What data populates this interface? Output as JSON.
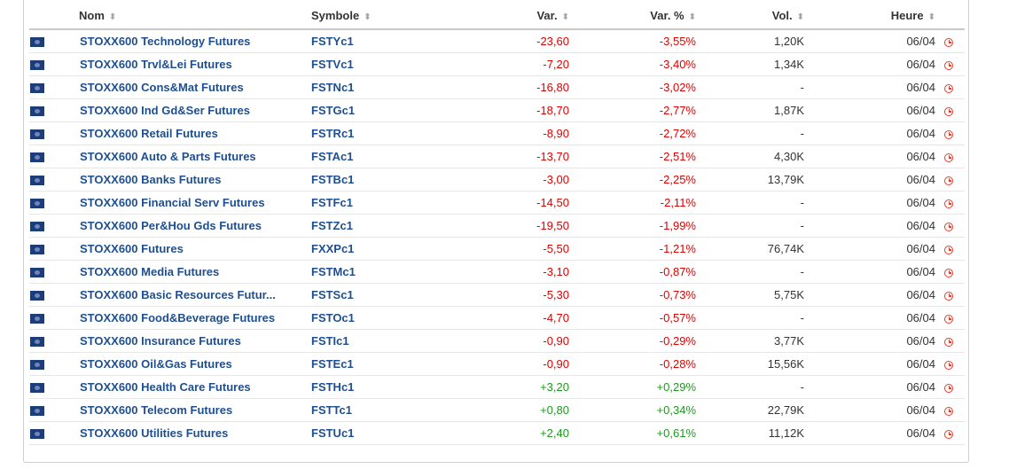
{
  "headers": {
    "name": "Nom",
    "symbol": "Symbole",
    "change": "Var.",
    "change_pct": "Var. %",
    "volume": "Vol.",
    "time": "Heure"
  },
  "sort_icons": {
    "name": "⬍",
    "symbol": "⬍",
    "change": "⬍",
    "change_pct": "⬍",
    "volume": "⬍",
    "time": "⬍"
  },
  "colors": {
    "negative": "#e00000",
    "positive": "#1e9a1e",
    "link": "#1f4f8f",
    "clock": "#e33b2e"
  },
  "flag_icon": "eu-flag-icon",
  "clock_icon": "clock-icon",
  "rows": [
    {
      "name": "STOXX600 Technology Futures",
      "symbol": "FSTYc1",
      "change": "-23,60",
      "change_pct": "-3,55%",
      "volume": "1,20K",
      "time": "06/04",
      "trend": "neg"
    },
    {
      "name": "STOXX600 Trvl&Lei Futures",
      "symbol": "FSTVc1",
      "change": "-7,20",
      "change_pct": "-3,40%",
      "volume": "1,34K",
      "time": "06/04",
      "trend": "neg"
    },
    {
      "name": "STOXX600 Cons&Mat Futures",
      "symbol": "FSTNc1",
      "change": "-16,80",
      "change_pct": "-3,02%",
      "volume": "-",
      "time": "06/04",
      "trend": "neg"
    },
    {
      "name": "STOXX600 Ind Gd&Ser Futures",
      "symbol": "FSTGc1",
      "change": "-18,70",
      "change_pct": "-2,77%",
      "volume": "1,87K",
      "time": "06/04",
      "trend": "neg"
    },
    {
      "name": "STOXX600 Retail Futures",
      "symbol": "FSTRc1",
      "change": "-8,90",
      "change_pct": "-2,72%",
      "volume": "-",
      "time": "06/04",
      "trend": "neg"
    },
    {
      "name": "STOXX600 Auto & Parts Futures",
      "symbol": "FSTAc1",
      "change": "-13,70",
      "change_pct": "-2,51%",
      "volume": "4,30K",
      "time": "06/04",
      "trend": "neg"
    },
    {
      "name": "STOXX600 Banks Futures",
      "symbol": "FSTBc1",
      "change": "-3,00",
      "change_pct": "-2,25%",
      "volume": "13,79K",
      "time": "06/04",
      "trend": "neg"
    },
    {
      "name": "STOXX600 Financial Serv Futures",
      "symbol": "FSTFc1",
      "change": "-14,50",
      "change_pct": "-2,11%",
      "volume": "-",
      "time": "06/04",
      "trend": "neg"
    },
    {
      "name": "STOXX600 Per&Hou Gds Futures",
      "symbol": "FSTZc1",
      "change": "-19,50",
      "change_pct": "-1,99%",
      "volume": "-",
      "time": "06/04",
      "trend": "neg"
    },
    {
      "name": "STOXX600 Futures",
      "symbol": "FXXPc1",
      "change": "-5,50",
      "change_pct": "-1,21%",
      "volume": "76,74K",
      "time": "06/04",
      "trend": "neg"
    },
    {
      "name": "STOXX600 Media Futures",
      "symbol": "FSTMc1",
      "change": "-3,10",
      "change_pct": "-0,87%",
      "volume": "-",
      "time": "06/04",
      "trend": "neg"
    },
    {
      "name": "STOXX600 Basic Resources Futur...",
      "symbol": "FSTSc1",
      "change": "-5,30",
      "change_pct": "-0,73%",
      "volume": "5,75K",
      "time": "06/04",
      "trend": "neg"
    },
    {
      "name": "STOXX600 Food&Beverage Futures",
      "symbol": "FSTOc1",
      "change": "-4,70",
      "change_pct": "-0,57%",
      "volume": "-",
      "time": "06/04",
      "trend": "neg"
    },
    {
      "name": "STOXX600 Insurance Futures",
      "symbol": "FSTIc1",
      "change": "-0,90",
      "change_pct": "-0,29%",
      "volume": "3,77K",
      "time": "06/04",
      "trend": "neg"
    },
    {
      "name": "STOXX600 Oil&Gas Futures",
      "symbol": "FSTEc1",
      "change": "-0,90",
      "change_pct": "-0,28%",
      "volume": "15,56K",
      "time": "06/04",
      "trend": "neg"
    },
    {
      "name": "STOXX600 Health Care Futures",
      "symbol": "FSTHc1",
      "change": "+3,20",
      "change_pct": "+0,29%",
      "volume": "-",
      "time": "06/04",
      "trend": "pos"
    },
    {
      "name": "STOXX600 Telecom Futures",
      "symbol": "FSTTc1",
      "change": "+0,80",
      "change_pct": "+0,34%",
      "volume": "22,79K",
      "time": "06/04",
      "trend": "pos"
    },
    {
      "name": "STOXX600 Utilities Futures",
      "symbol": "FSTUc1",
      "change": "+2,40",
      "change_pct": "+0,61%",
      "volume": "11,12K",
      "time": "06/04",
      "trend": "pos"
    }
  ]
}
